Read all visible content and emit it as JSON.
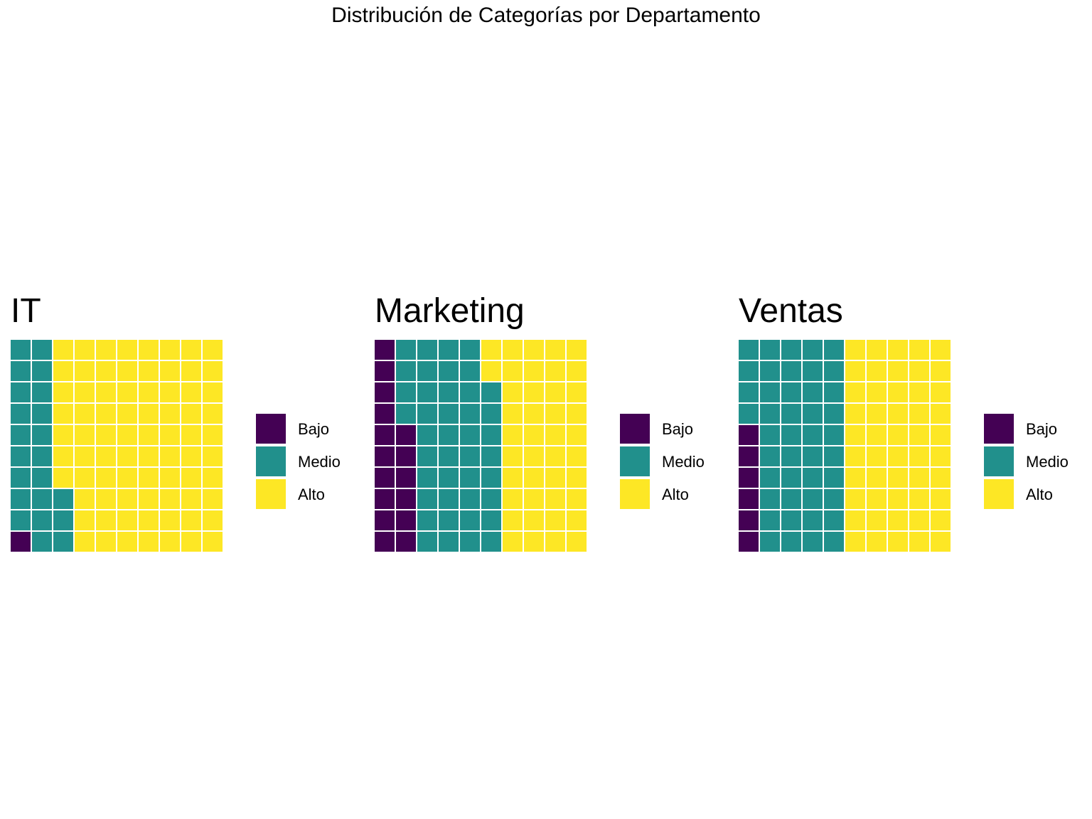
{
  "chart_data": {
    "type": "waffle",
    "title": "Distribución de Categorías por Departamento",
    "grid": {
      "rows": 10,
      "cols": 10,
      "fill_order": "column-major, bottom-to-top"
    },
    "categories": [
      "Bajo",
      "Medio",
      "Alto"
    ],
    "colors": {
      "Bajo": "#440154",
      "Medio": "#21908C",
      "Alto": "#FDE725"
    },
    "legend_position": "right",
    "panels": [
      {
        "name": "IT",
        "values": {
          "Bajo": 1,
          "Medio": 22,
          "Alto": 77
        }
      },
      {
        "name": "Marketing",
        "values": {
          "Bajo": 16,
          "Medio": 42,
          "Alto": 42
        }
      },
      {
        "name": "Ventas",
        "values": {
          "Bajo": 6,
          "Medio": 44,
          "Alto": 50
        }
      }
    ]
  }
}
